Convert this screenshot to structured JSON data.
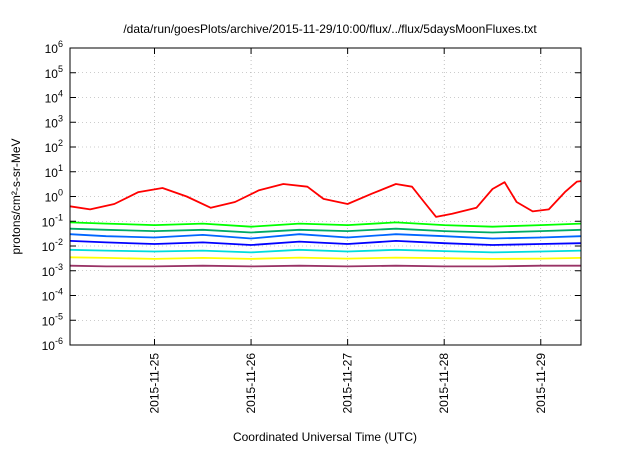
{
  "chart_data": {
    "type": "line",
    "title": "/data/run/goesPlots/archive/2015-11-29/10:00/flux/../flux/5daysMoonFluxes.txt",
    "xlabel": "Coordinated Universal Time (UTC)",
    "ylabel": "protons/cm²-s-sr-MeV",
    "yscale": "log",
    "ylim": [
      1e-06,
      1000000.0
    ],
    "xlim": [
      "2015-11-24 03:00",
      "2015-11-29 10:00"
    ],
    "x_ticks": [
      "2015-11-25",
      "2015-11-26",
      "2015-11-27",
      "2015-11-28",
      "2015-11-29"
    ],
    "y_ticks": [
      {
        "value": 1e-06,
        "base": "10",
        "exp": "-6"
      },
      {
        "value": 1e-05,
        "base": "10",
        "exp": "-5"
      },
      {
        "value": 0.0001,
        "base": "10",
        "exp": "-4"
      },
      {
        "value": 0.001,
        "base": "10",
        "exp": "-3"
      },
      {
        "value": 0.01,
        "base": "10",
        "exp": "-2"
      },
      {
        "value": 0.1,
        "base": "10",
        "exp": "-1"
      },
      {
        "value": 1,
        "base": "10",
        "exp": "0"
      },
      {
        "value": 10.0,
        "base": "10",
        "exp": "1"
      },
      {
        "value": 100.0,
        "base": "10",
        "exp": "2"
      },
      {
        "value": 1000.0,
        "base": "10",
        "exp": "3"
      },
      {
        "value": 10000.0,
        "base": "10",
        "exp": "4"
      },
      {
        "value": 100000.0,
        "base": "10",
        "exp": "5"
      },
      {
        "value": 1000000.0,
        "base": "10",
        "exp": "6"
      }
    ],
    "grid": true,
    "legend": "none",
    "series": [
      {
        "color": "#ff0000",
        "x": [
          "2015-11-24 03:00",
          "2015-11-24 08:00",
          "2015-11-24 14:00",
          "2015-11-24 20:00",
          "2015-11-25 02:00",
          "2015-11-25 08:00",
          "2015-11-25 14:00",
          "2015-11-25 20:00",
          "2015-11-26 02:00",
          "2015-11-26 08:00",
          "2015-11-26 14:00",
          "2015-11-26 18:00",
          "2015-11-27 00:00",
          "2015-11-27 06:00",
          "2015-11-27 12:00",
          "2015-11-27 16:00",
          "2015-11-27 19:00",
          "2015-11-27 22:00",
          "2015-11-28 02:00",
          "2015-11-28 08:00",
          "2015-11-28 12:00",
          "2015-11-28 15:00",
          "2015-11-28 18:00",
          "2015-11-28 22:00",
          "2015-11-29 02:00",
          "2015-11-29 06:00",
          "2015-11-29 09:00",
          "2015-11-29 10:00"
        ],
        "values": [
          0.4,
          0.3,
          0.5,
          1.5,
          2.2,
          1.0,
          0.35,
          0.6,
          1.8,
          3.2,
          2.5,
          0.8,
          0.5,
          1.3,
          3.2,
          2.5,
          0.6,
          0.15,
          0.2,
          0.35,
          2.0,
          3.8,
          0.6,
          0.25,
          0.3,
          1.5,
          4.0,
          4.2
        ]
      },
      {
        "color": "#00ff00",
        "x": [
          "2015-11-24 03:00",
          "2015-11-24 12:00",
          "2015-11-25 00:00",
          "2015-11-25 12:00",
          "2015-11-26 00:00",
          "2015-11-26 12:00",
          "2015-11-27 00:00",
          "2015-11-27 12:00",
          "2015-11-28 00:00",
          "2015-11-28 12:00",
          "2015-11-29 00:00",
          "2015-11-29 10:00"
        ],
        "values": [
          0.09,
          0.08,
          0.07,
          0.08,
          0.06,
          0.08,
          0.07,
          0.09,
          0.07,
          0.06,
          0.07,
          0.08
        ]
      },
      {
        "color": "#00aa66",
        "x": [
          "2015-11-24 03:00",
          "2015-11-24 12:00",
          "2015-11-25 00:00",
          "2015-11-25 12:00",
          "2015-11-26 00:00",
          "2015-11-26 12:00",
          "2015-11-27 00:00",
          "2015-11-27 12:00",
          "2015-11-28 00:00",
          "2015-11-28 12:00",
          "2015-11-29 00:00",
          "2015-11-29 10:00"
        ],
        "values": [
          0.05,
          0.045,
          0.04,
          0.045,
          0.035,
          0.045,
          0.04,
          0.05,
          0.04,
          0.035,
          0.04,
          0.045
        ]
      },
      {
        "color": "#0066ff",
        "x": [
          "2015-11-24 03:00",
          "2015-11-24 12:00",
          "2015-11-25 00:00",
          "2015-11-25 12:00",
          "2015-11-26 00:00",
          "2015-11-26 12:00",
          "2015-11-27 00:00",
          "2015-11-27 12:00",
          "2015-11-28 00:00",
          "2015-11-28 12:00",
          "2015-11-29 00:00",
          "2015-11-29 10:00"
        ],
        "values": [
          0.03,
          0.025,
          0.022,
          0.028,
          0.02,
          0.03,
          0.022,
          0.03,
          0.025,
          0.02,
          0.022,
          0.025
        ]
      },
      {
        "color": "#0000ff",
        "x": [
          "2015-11-24 03:00",
          "2015-11-24 12:00",
          "2015-11-25 00:00",
          "2015-11-25 12:00",
          "2015-11-26 00:00",
          "2015-11-26 12:00",
          "2015-11-27 00:00",
          "2015-11-27 12:00",
          "2015-11-28 00:00",
          "2015-11-28 12:00",
          "2015-11-29 00:00",
          "2015-11-29 10:00"
        ],
        "values": [
          0.016,
          0.014,
          0.012,
          0.014,
          0.011,
          0.015,
          0.012,
          0.016,
          0.013,
          0.011,
          0.012,
          0.013
        ]
      },
      {
        "color": "#00dddd",
        "x": [
          "2015-11-24 03:00",
          "2015-11-24 12:00",
          "2015-11-25 00:00",
          "2015-11-25 12:00",
          "2015-11-26 00:00",
          "2015-11-26 12:00",
          "2015-11-27 00:00",
          "2015-11-27 12:00",
          "2015-11-28 00:00",
          "2015-11-28 12:00",
          "2015-11-29 00:00",
          "2015-11-29 10:00"
        ],
        "values": [
          0.007,
          0.0065,
          0.006,
          0.0065,
          0.0055,
          0.007,
          0.006,
          0.007,
          0.0062,
          0.0055,
          0.006,
          0.0065
        ]
      },
      {
        "color": "#ffff00",
        "x": [
          "2015-11-24 03:00",
          "2015-11-24 12:00",
          "2015-11-25 00:00",
          "2015-11-25 12:00",
          "2015-11-26 00:00",
          "2015-11-26 12:00",
          "2015-11-27 00:00",
          "2015-11-27 12:00",
          "2015-11-28 00:00",
          "2015-11-28 12:00",
          "2015-11-29 00:00",
          "2015-11-29 10:00"
        ],
        "values": [
          0.0035,
          0.0033,
          0.003,
          0.0033,
          0.003,
          0.0034,
          0.0031,
          0.0034,
          0.0032,
          0.003,
          0.0031,
          0.0033
        ]
      },
      {
        "color": "#993366",
        "x": [
          "2015-11-24 03:00",
          "2015-11-24 12:00",
          "2015-11-25 00:00",
          "2015-11-25 12:00",
          "2015-11-26 00:00",
          "2015-11-26 12:00",
          "2015-11-27 00:00",
          "2015-11-27 12:00",
          "2015-11-28 00:00",
          "2015-11-28 12:00",
          "2015-11-29 00:00",
          "2015-11-29 10:00"
        ],
        "values": [
          0.0016,
          0.0015,
          0.0015,
          0.0016,
          0.0015,
          0.0016,
          0.0015,
          0.0016,
          0.0015,
          0.0015,
          0.0016,
          0.0016
        ]
      }
    ]
  }
}
